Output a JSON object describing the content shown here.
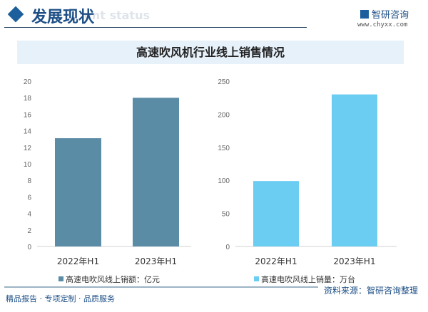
{
  "header": {
    "title": "发展现状",
    "ghost_text": "ent status",
    "logo_text": "智研咨询",
    "url": "www.chyxx.com"
  },
  "banner_title": "高速吹风机行业线上销售情况",
  "chart_data": [
    {
      "type": "bar",
      "categories": [
        "2022年H1",
        "2023年H1"
      ],
      "values": [
        13.1,
        18.0
      ],
      "ylim": [
        0,
        20
      ],
      "yticks": [
        0,
        2,
        4,
        6,
        8,
        10,
        12,
        14,
        16,
        18,
        20
      ],
      "color": "#5b8ca5",
      "legend": "高速电吹风线上销额：亿元",
      "grid": false
    },
    {
      "type": "bar",
      "categories": [
        "2022年H1",
        "2023年H1"
      ],
      "values": [
        99,
        230
      ],
      "ylim": [
        0,
        250
      ],
      "yticks": [
        0,
        50,
        100,
        150,
        200,
        250
      ],
      "color": "#6ccdf2",
      "legend": "高速电吹风线上销量：万台",
      "grid": false
    }
  ],
  "footer": {
    "slogan": "精品报告 · 专项定制 · 品质服务",
    "source": "资料来源：智研咨询整理"
  }
}
